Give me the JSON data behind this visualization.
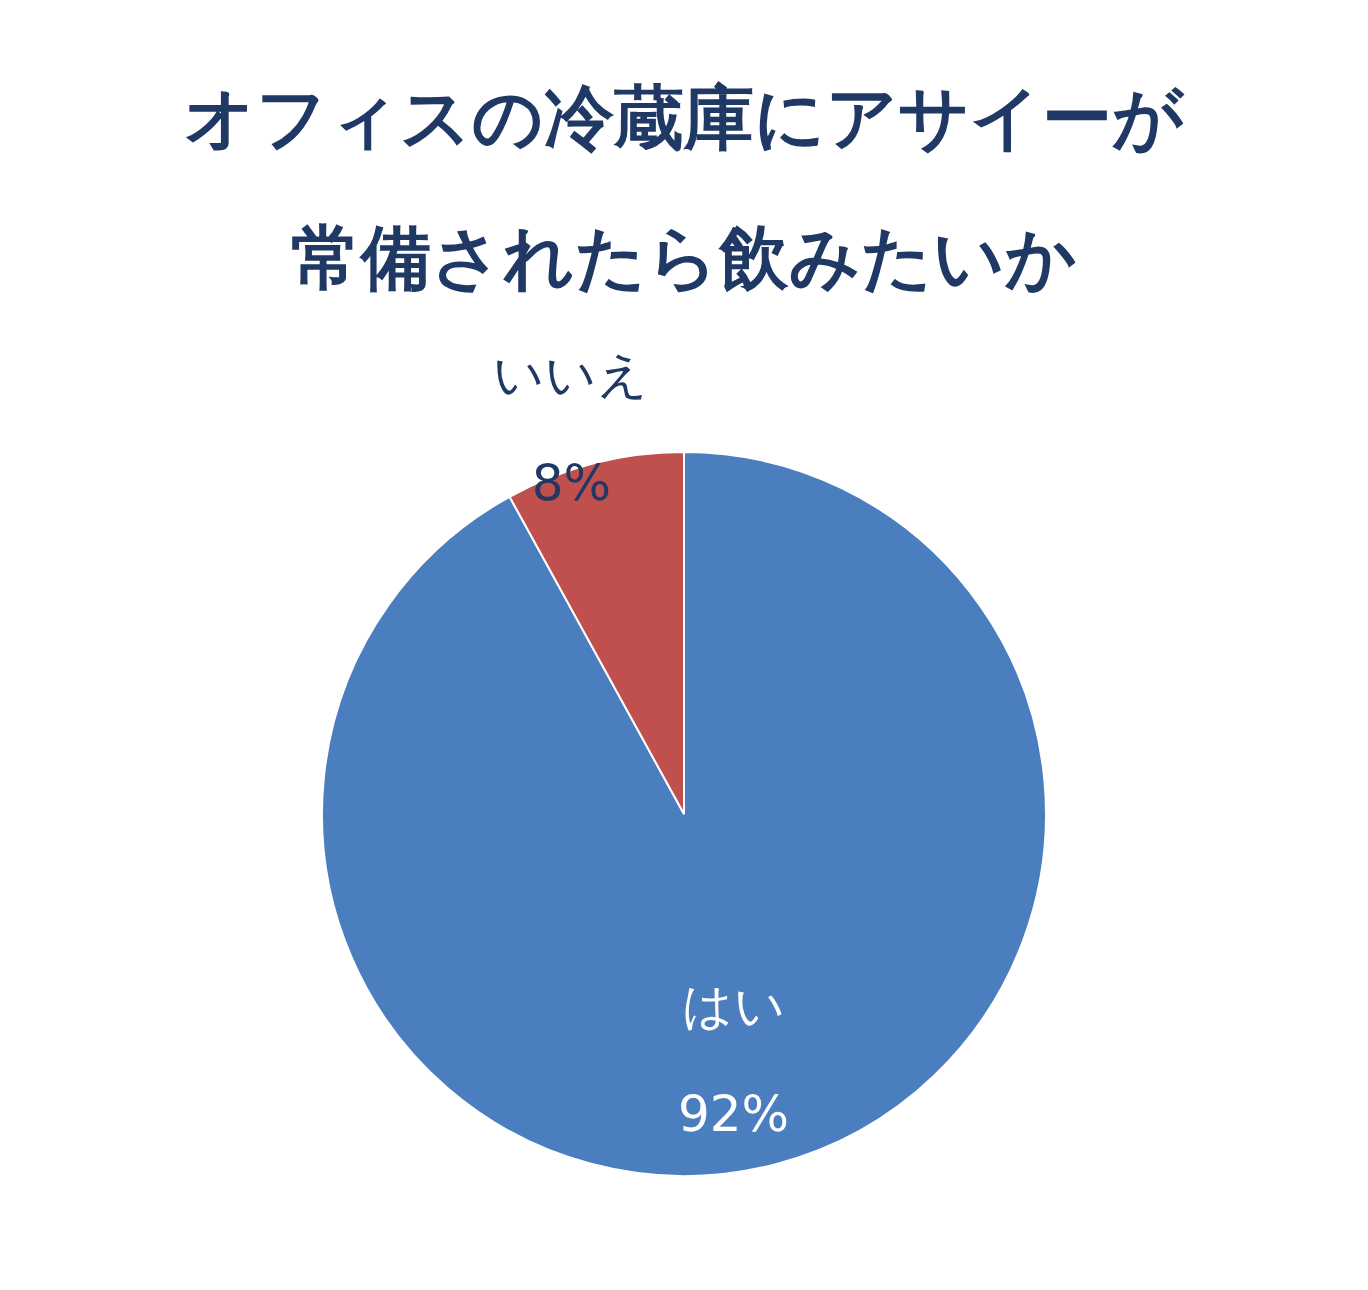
{
  "chart_data": {
    "type": "pie",
    "title": "オフィスの冷蔵庫にアサイーが常備されたら飲みたいか",
    "categories": [
      "はい",
      "いいえ"
    ],
    "values": [
      92,
      8
    ],
    "colors": [
      "#4a7ebf",
      "#c0504d"
    ],
    "value_labels": [
      "92%",
      "8%"
    ],
    "legend": false
  }
}
